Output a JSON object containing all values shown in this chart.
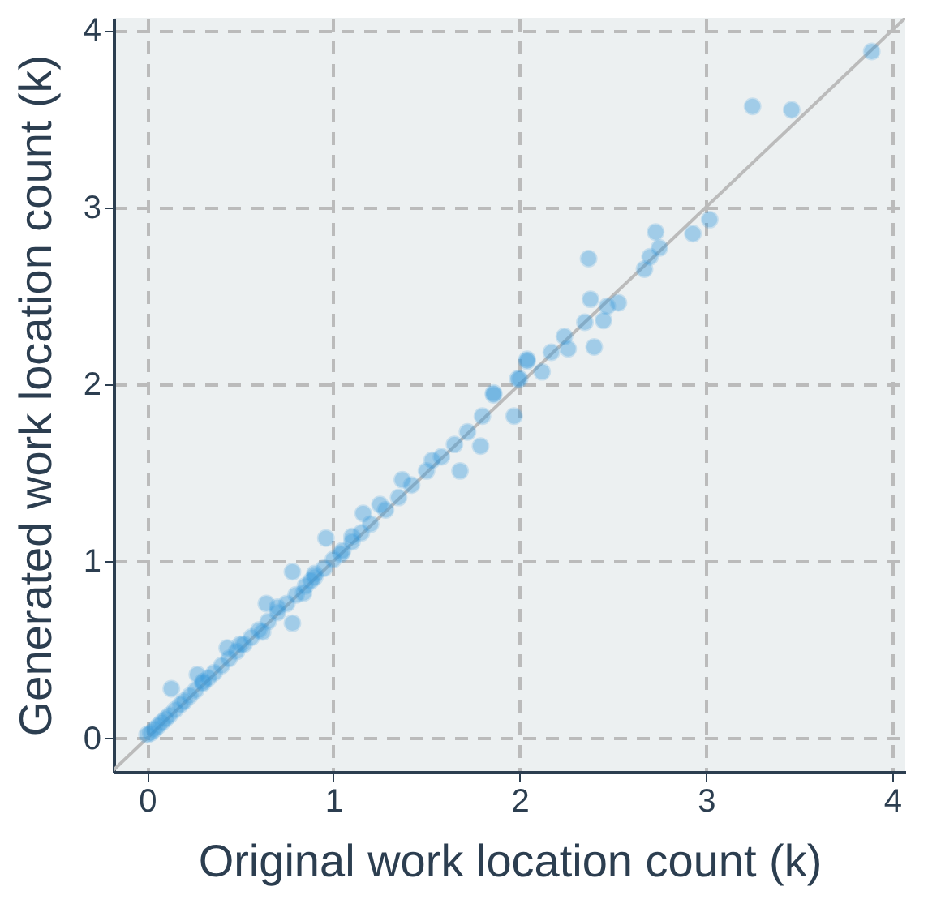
{
  "chart_data": {
    "type": "scatter",
    "xlabel": "Original work location count (k)",
    "ylabel": "Generated work location count (k)",
    "xlim": [
      -0.18,
      4.07
    ],
    "ylim": [
      -0.19,
      4.07
    ],
    "xticks": [
      0,
      1,
      2,
      3,
      4
    ],
    "yticks": [
      0,
      1,
      2,
      3,
      4
    ],
    "grid": true,
    "series": [
      {
        "color": "#3498db",
        "marker": "circle",
        "x": [
          3.89,
          3.25,
          3.46,
          3.02,
          2.93,
          2.73,
          2.75,
          2.7,
          2.67,
          2.37,
          2.38,
          2.53,
          2.47,
          2.35,
          2.45,
          2.4,
          2.24,
          2.17,
          2.04,
          2.12,
          2.26,
          1.99,
          1.86,
          2.04,
          2.0,
          1.86,
          1.8,
          1.97,
          1.79,
          1.68,
          1.53,
          1.37,
          1.25,
          1.16,
          0.96,
          1.04,
          0.78,
          0.88,
          0.78,
          0.64,
          0.43,
          0.13,
          0.27,
          0.0,
          0.02,
          0.04,
          0.06,
          0.08,
          0.1,
          0.12,
          0.15,
          0.18,
          0.2,
          0.23,
          0.26,
          0.3,
          0.33,
          0.36,
          0.4,
          0.44,
          0.48,
          0.52,
          0.56,
          0.6,
          0.65,
          0.7,
          0.75,
          0.8,
          0.85,
          0.9,
          0.95,
          1.0,
          1.05,
          1.1,
          1.15,
          1.2,
          1.28,
          1.35,
          1.42,
          1.5,
          1.58,
          1.65,
          1.72,
          0.5,
          0.7,
          0.9,
          1.1,
          0.3,
          0.62,
          0.84
        ],
        "values": [
          3.88,
          3.57,
          3.55,
          2.93,
          2.85,
          2.86,
          2.77,
          2.72,
          2.65,
          2.71,
          2.48,
          2.46,
          2.44,
          2.35,
          2.36,
          2.21,
          2.27,
          2.18,
          2.13,
          2.07,
          2.2,
          2.03,
          1.95,
          2.14,
          2.03,
          1.94,
          1.82,
          1.82,
          1.65,
          1.51,
          1.57,
          1.46,
          1.32,
          1.27,
          1.13,
          1.04,
          0.94,
          0.89,
          0.65,
          0.76,
          0.51,
          0.28,
          0.36,
          0.02,
          0.03,
          0.05,
          0.07,
          0.09,
          0.11,
          0.13,
          0.16,
          0.19,
          0.21,
          0.24,
          0.27,
          0.31,
          0.34,
          0.37,
          0.41,
          0.45,
          0.49,
          0.53,
          0.57,
          0.61,
          0.66,
          0.71,
          0.76,
          0.81,
          0.86,
          0.91,
          0.96,
          1.01,
          1.06,
          1.11,
          1.16,
          1.21,
          1.29,
          1.36,
          1.43,
          1.51,
          1.59,
          1.66,
          1.73,
          0.53,
          0.74,
          0.93,
          1.14,
          0.32,
          0.6,
          0.82
        ]
      },
      {
        "type": "line",
        "color": "#bbbbbb",
        "x": [
          -0.18,
          4.07
        ],
        "values": [
          -0.18,
          4.07
        ]
      }
    ]
  }
}
